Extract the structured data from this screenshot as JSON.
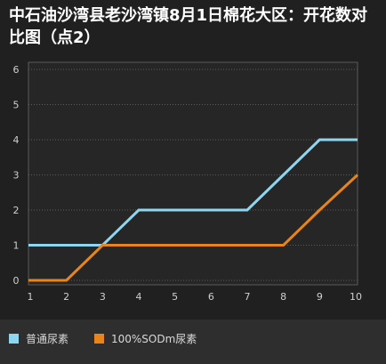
{
  "chart_data": {
    "type": "line",
    "title": "中石油沙湾县老沙湾镇8月1日棉花大区：开花数对比图（点2）",
    "x": [
      1,
      2,
      3,
      4,
      5,
      6,
      7,
      8,
      9,
      10
    ],
    "xlim": [
      1,
      10
    ],
    "ylim": [
      0,
      6
    ],
    "y_ticks": [
      0,
      1,
      2,
      3,
      4,
      5,
      6
    ],
    "grid": true,
    "legend_position": "bottom",
    "series": [
      {
        "name": "普通尿素",
        "color": "#8ed6f0",
        "values": [
          1,
          1,
          1,
          2,
          2,
          2,
          2,
          3,
          4,
          4
        ]
      },
      {
        "name": "100%SODm尿素",
        "color": "#e8851a",
        "values": [
          0,
          0,
          1,
          1,
          1,
          1,
          1,
          1,
          2,
          3
        ]
      }
    ]
  }
}
